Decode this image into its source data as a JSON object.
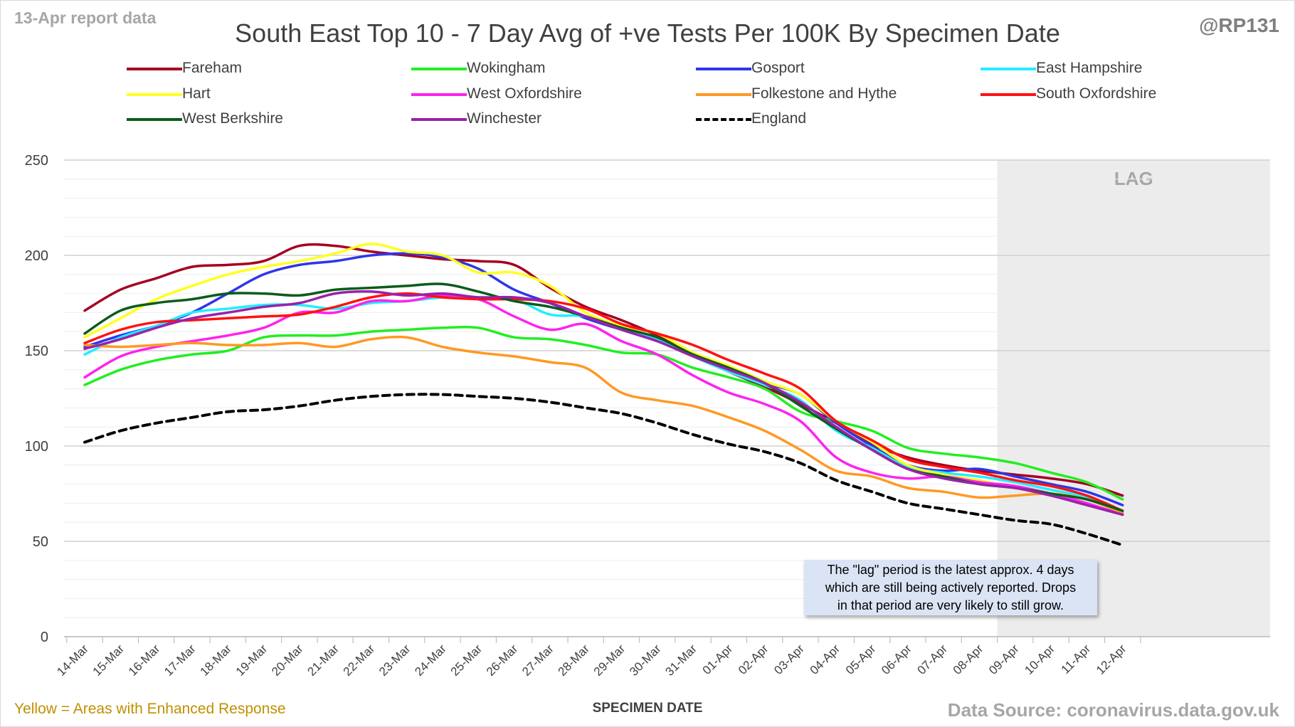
{
  "header": {
    "corner_left": "13-Apr report data",
    "corner_right": "@RP131",
    "title": "South East Top 10 - 7 Day Avg of +ve Tests Per 100K By Specimen Date"
  },
  "footer": {
    "note": "Yellow = Areas with Enhanced Response",
    "source": "Data Source: coronavirus.data.gov.uk"
  },
  "annotation": {
    "lines": [
      "The \"lag\" period is the latest approx. 4 days",
      "which are still being actively reported. Drops",
      "in that period are very likely to still grow."
    ]
  },
  "chart_data": {
    "type": "line",
    "title": "South East Top 10 - 7 Day Avg of +ve Tests Per 100K By Specimen Date",
    "xlabel": "SPECIMEN DATE",
    "ylabel": "",
    "ylim": [
      0,
      250
    ],
    "yticks": [
      0,
      50,
      100,
      150,
      200,
      250
    ],
    "grid": true,
    "legend_position": "top",
    "lag_label": "LAG",
    "lag_start": "09-Apr",
    "categories": [
      "14-Mar",
      "15-Mar",
      "16-Mar",
      "17-Mar",
      "18-Mar",
      "19-Mar",
      "20-Mar",
      "21-Mar",
      "22-Mar",
      "23-Mar",
      "24-Mar",
      "25-Mar",
      "26-Mar",
      "27-Mar",
      "28-Mar",
      "29-Mar",
      "30-Mar",
      "31-Mar",
      "01-Apr",
      "02-Apr",
      "03-Apr",
      "04-Apr",
      "05-Apr",
      "06-Apr",
      "07-Apr",
      "08-Apr",
      "09-Apr",
      "10-Apr",
      "11-Apr",
      "12-Apr"
    ],
    "series": [
      {
        "name": "Fareham",
        "color": "#a50021",
        "dashed": false,
        "values": [
          171,
          182,
          188,
          194,
          195,
          197,
          205,
          205,
          202,
          200,
          198,
          197,
          195,
          183,
          173,
          166,
          158,
          148,
          139,
          131,
          122,
          112,
          101,
          94,
          90,
          87,
          85,
          83,
          80,
          74
        ]
      },
      {
        "name": "Wokingham",
        "color": "#22ee22",
        "dashed": false,
        "values": [
          132,
          140,
          145,
          148,
          150,
          157,
          158,
          158,
          160,
          161,
          162,
          162,
          157,
          156,
          153,
          149,
          148,
          141,
          136,
          130,
          118,
          113,
          108,
          99,
          96,
          94,
          91,
          86,
          81,
          72
        ]
      },
      {
        "name": "Gosport",
        "color": "#2e36e8",
        "dashed": false,
        "values": [
          152,
          158,
          163,
          170,
          180,
          190,
          195,
          197,
          200,
          201,
          199,
          193,
          182,
          175,
          167,
          161,
          155,
          148,
          140,
          133,
          127,
          112,
          100,
          90,
          87,
          88,
          84,
          80,
          76,
          69
        ]
      },
      {
        "name": "East Hampshire",
        "color": "#22eeff",
        "dashed": false,
        "values": [
          148,
          157,
          163,
          170,
          172,
          174,
          174,
          172,
          175,
          176,
          178,
          178,
          177,
          169,
          168,
          161,
          156,
          147,
          139,
          132,
          124,
          108,
          99,
          89,
          86,
          84,
          81,
          77,
          73,
          64
        ]
      },
      {
        "name": "Hart",
        "color": "#ffff22",
        "dashed": false,
        "values": [
          157,
          167,
          177,
          184,
          190,
          194,
          197,
          201,
          206,
          202,
          200,
          191,
          191,
          184,
          170,
          163,
          159,
          149,
          142,
          134,
          127,
          113,
          102,
          90,
          85,
          82,
          78,
          75,
          72,
          66
        ]
      },
      {
        "name": "West Oxfordshire",
        "color": "#ff22ee",
        "dashed": false,
        "values": [
          136,
          147,
          152,
          155,
          158,
          162,
          170,
          170,
          176,
          176,
          179,
          177,
          168,
          161,
          164,
          155,
          148,
          137,
          128,
          122,
          113,
          94,
          86,
          83,
          84,
          81,
          79,
          75,
          70,
          64
        ]
      },
      {
        "name": "Folkestone and Hythe",
        "color": "#ff9922",
        "dashed": false,
        "values": [
          153,
          152,
          153,
          154,
          153,
          153,
          154,
          152,
          156,
          157,
          152,
          149,
          147,
          144,
          141,
          128,
          124,
          121,
          115,
          108,
          98,
          87,
          84,
          78,
          76,
          73,
          74,
          75,
          72,
          65
        ]
      },
      {
        "name": "South Oxfordshire",
        "color": "#ff1111",
        "dashed": false,
        "values": [
          154,
          161,
          165,
          166,
          167,
          168,
          169,
          173,
          178,
          180,
          178,
          177,
          177,
          176,
          172,
          164,
          159,
          153,
          145,
          138,
          130,
          113,
          103,
          93,
          89,
          86,
          82,
          79,
          74,
          66
        ]
      },
      {
        "name": "West Berkshire",
        "color": "#0a5c1a",
        "dashed": false,
        "values": [
          159,
          171,
          175,
          177,
          180,
          180,
          179,
          182,
          183,
          184,
          185,
          181,
          176,
          173,
          168,
          162,
          157,
          148,
          141,
          133,
          121,
          109,
          98,
          88,
          84,
          80,
          78,
          75,
          72,
          66
        ]
      },
      {
        "name": "Winchester",
        "color": "#9922aa",
        "dashed": false,
        "values": [
          151,
          156,
          162,
          167,
          170,
          173,
          175,
          180,
          181,
          179,
          180,
          178,
          178,
          175,
          168,
          161,
          155,
          147,
          140,
          133,
          123,
          110,
          98,
          88,
          83,
          80,
          78,
          74,
          69,
          64
        ]
      },
      {
        "name": "England",
        "color": "#000000",
        "dashed": true,
        "values": [
          102,
          108,
          112,
          115,
          118,
          119,
          121,
          124,
          126,
          127,
          127,
          126,
          125,
          123,
          120,
          117,
          112,
          106,
          101,
          97,
          91,
          82,
          76,
          70,
          67,
          64,
          61,
          59,
          54,
          48
        ]
      }
    ]
  }
}
